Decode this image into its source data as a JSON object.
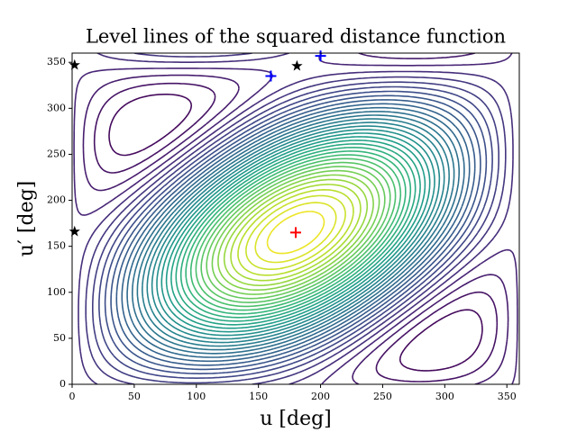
{
  "chart_data": {
    "type": "contour",
    "title": "Level lines of the squared distance function",
    "xlabel": "u [deg]",
    "ylabel": "u′ [deg]",
    "xlim": [
      0,
      360
    ],
    "ylim": [
      0,
      360
    ],
    "xticks": [
      0,
      50,
      100,
      150,
      200,
      250,
      300,
      350
    ],
    "yticks": [
      0,
      50,
      100,
      150,
      200,
      250,
      300,
      350
    ],
    "colormap": "viridis",
    "markers": [
      {
        "color": "#ff0000",
        "marker": "+",
        "x": [
          180
        ],
        "y": [
          165
        ]
      },
      {
        "color": "#0000ff",
        "marker": "+",
        "x": [
          160,
          200
        ],
        "y": [
          335,
          357
        ]
      },
      {
        "color": "#000000",
        "marker": "*",
        "x": [
          2,
          181,
          2
        ],
        "y": [
          347,
          346,
          166
        ]
      }
    ]
  }
}
